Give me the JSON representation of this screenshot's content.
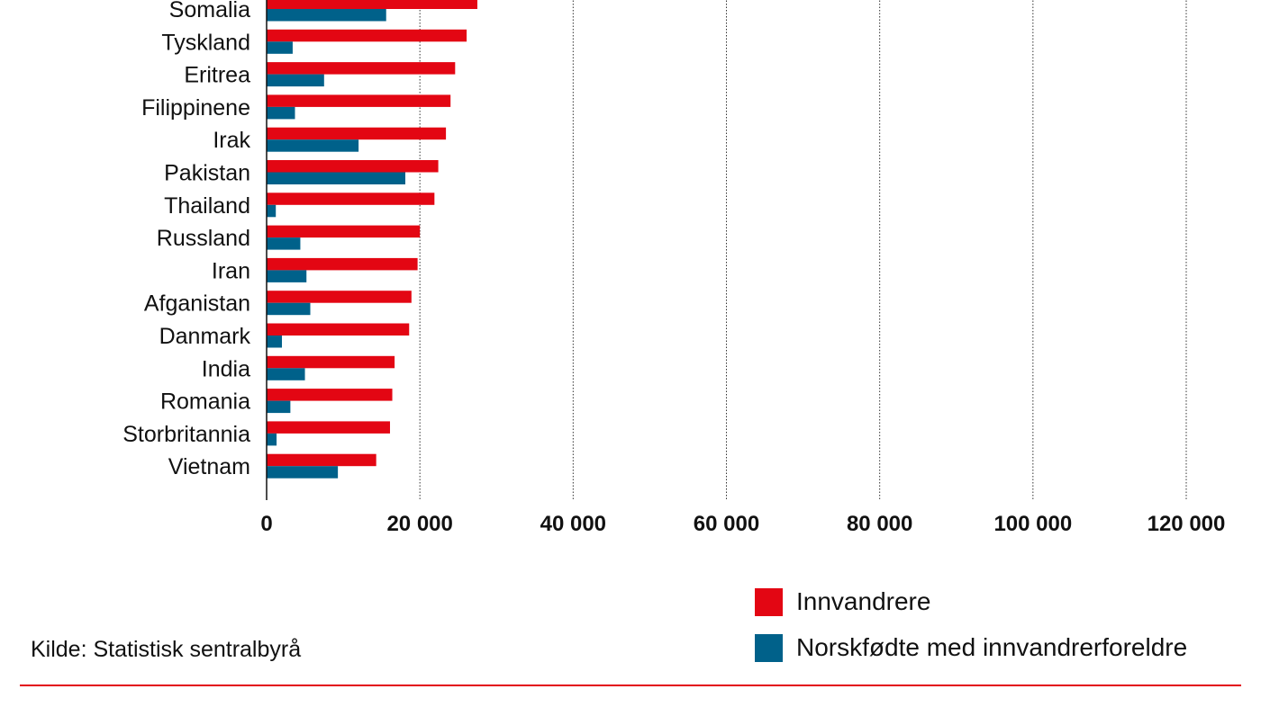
{
  "colors": {
    "innvandrere": "#e30613",
    "norskfodte": "#00618a",
    "grid": "#333333",
    "axis": "#111111"
  },
  "chart_data": {
    "type": "bar",
    "orientation": "horizontal",
    "categories": [
      "Somalia",
      "Tyskland",
      "Eritrea",
      "Filippinene",
      "Irak",
      "Pakistan",
      "Thailand",
      "Russland",
      "Iran",
      "Afganistan",
      "Danmark",
      "India",
      "Romania",
      "Storbritannia",
      "Vietnam"
    ],
    "series": [
      {
        "name": "Innvandrere",
        "color": "#e30613",
        "values": [
          27500,
          26100,
          24600,
          24000,
          23400,
          22400,
          21900,
          20000,
          19700,
          18900,
          18600,
          16700,
          16400,
          16100,
          14300
        ]
      },
      {
        "name": "Norskfødte med innvandrerforeldre",
        "color": "#00618a",
        "values": [
          15600,
          3400,
          7500,
          3700,
          12000,
          18100,
          1200,
          4400,
          5200,
          5700,
          2000,
          5000,
          3100,
          1300,
          9300
        ]
      }
    ],
    "xlim": [
      0,
      120000
    ],
    "xticks": [
      0,
      20000,
      40000,
      60000,
      80000,
      100000,
      120000
    ],
    "xtick_labels": [
      "0",
      "20 000",
      "40 000",
      "60 000",
      "80 000",
      "100 000",
      "120 000"
    ],
    "grid": "vertical-dotted",
    "legend_position": "bottom-right",
    "xlabel": "",
    "ylabel": ""
  },
  "legend": {
    "items": [
      "Innvandrere",
      "Norskfødte med innvandrerforeldre"
    ]
  },
  "source": "Kilde: Statistisk sentralbyrå"
}
